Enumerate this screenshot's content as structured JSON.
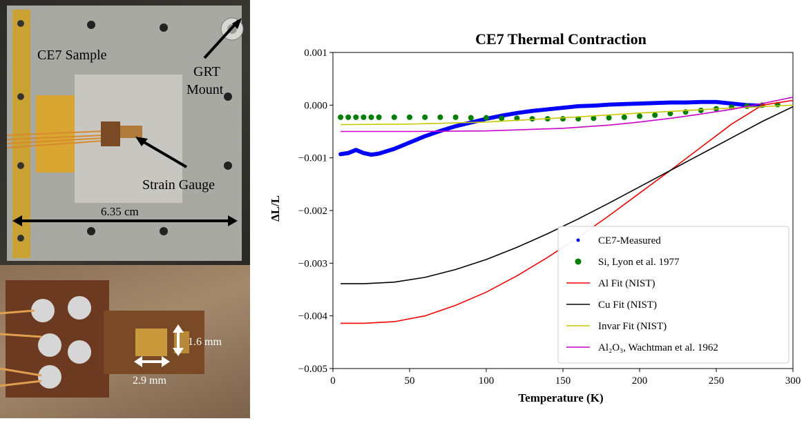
{
  "photos": {
    "top": {
      "sample_label": "CE7 Sample",
      "grt_label_line1": "GRT",
      "grt_label_line2": "Mount",
      "strain_label": "Strain Gauge",
      "width_label": "6.35 cm"
    },
    "bottom": {
      "height_label": "1.6 mm",
      "width_label": "2.9 mm"
    }
  },
  "chart_data": {
    "type": "line",
    "title": "CE7 Thermal Contraction",
    "xlabel": "Temperature (K)",
    "ylabel": "ΔL/L",
    "xlim": [
      0,
      300
    ],
    "ylim": [
      -0.005,
      0.001
    ],
    "x_ticks": [
      "0",
      "50",
      "100",
      "150",
      "200",
      "250",
      "300"
    ],
    "y_ticks": [
      "0.001",
      "0.000",
      "−0.001",
      "−0.002",
      "−0.003",
      "−0.004",
      "−0.005"
    ],
    "legend_position": "lower-right",
    "series": [
      {
        "name": "CE7-Measured",
        "style": "points",
        "color": "#0000ff",
        "x": [
          5,
          10,
          15,
          20,
          25,
          30,
          40,
          50,
          60,
          70,
          80,
          90,
          100,
          110,
          120,
          130,
          140,
          150,
          160,
          170,
          180,
          190,
          200,
          210,
          220,
          230,
          240,
          250,
          260,
          270,
          280
        ],
        "y": [
          -0.00093,
          -0.00091,
          -0.00085,
          -0.00091,
          -0.00094,
          -0.00092,
          -0.00083,
          -0.00071,
          -0.00059,
          -0.00049,
          -0.0004,
          -0.00033,
          -0.00026,
          -0.0002,
          -0.00015,
          -0.00011,
          -8e-05,
          -5e-05,
          -2e-05,
          -1e-05,
          1e-05,
          2e-05,
          3e-05,
          4e-05,
          5e-05,
          5e-05,
          6e-05,
          6e-05,
          3e-05,
          0.0,
          -1e-05
        ]
      },
      {
        "name": "Si, Lyon et al. 1977",
        "style": "markers",
        "color": "#008000",
        "x": [
          5,
          10,
          15,
          20,
          25,
          30,
          40,
          50,
          60,
          70,
          80,
          90,
          100,
          110,
          120,
          130,
          140,
          150,
          160,
          170,
          180,
          190,
          200,
          210,
          220,
          230,
          240,
          250,
          260,
          270,
          280,
          290
        ],
        "y": [
          -0.00023,
          -0.00023,
          -0.00023,
          -0.00023,
          -0.00023,
          -0.00023,
          -0.00023,
          -0.00023,
          -0.00023,
          -0.00023,
          -0.00023,
          -0.00024,
          -0.00024,
          -0.00025,
          -0.00025,
          -0.00026,
          -0.00026,
          -0.00026,
          -0.00026,
          -0.00025,
          -0.00024,
          -0.00023,
          -0.00021,
          -0.00019,
          -0.00016,
          -0.00013,
          -0.0001,
          -7e-05,
          -4e-05,
          -2e-05,
          0.0,
          1e-05
        ]
      },
      {
        "name": "Al Fit (NIST)",
        "style": "line",
        "color": "#ff0000",
        "x": [
          5,
          20,
          40,
          60,
          80,
          100,
          120,
          140,
          160,
          180,
          200,
          220,
          240,
          260,
          280,
          300
        ],
        "y": [
          -0.00414,
          -0.00414,
          -0.00411,
          -0.004,
          -0.0038,
          -0.00355,
          -0.00324,
          -0.00289,
          -0.00251,
          -0.0021,
          -0.00167,
          -0.00124,
          -0.0008,
          -0.00036,
          0.0,
          9e-05
        ]
      },
      {
        "name": "Cu Fit (NIST)",
        "style": "line",
        "color": "#000000",
        "x": [
          5,
          20,
          40,
          60,
          80,
          100,
          120,
          140,
          160,
          180,
          200,
          220,
          240,
          260,
          280,
          300
        ],
        "y": [
          -0.00339,
          -0.00339,
          -0.00336,
          -0.00327,
          -0.00312,
          -0.00293,
          -0.0027,
          -0.00244,
          -0.00216,
          -0.00186,
          -0.00155,
          -0.00124,
          -0.00093,
          -0.00062,
          -0.00031,
          -3e-05
        ]
      },
      {
        "name": "Invar Fit (NIST)",
        "style": "line",
        "color": "#c8c800",
        "x": [
          5,
          50,
          100,
          150,
          200,
          250,
          300
        ],
        "y": [
          -0.00037,
          -0.00036,
          -0.00032,
          -0.00024,
          -0.00015,
          -7e-05,
          0.0
        ]
      },
      {
        "name": "Al₂O₃, Wachtman et al. 1962",
        "style": "line",
        "color": "#cc00cc",
        "x": [
          5,
          50,
          100,
          150,
          180,
          200,
          220,
          240,
          260,
          280,
          300
        ],
        "y": [
          -0.0005,
          -0.0005,
          -0.00049,
          -0.00044,
          -0.00038,
          -0.00032,
          -0.00025,
          -0.00017,
          -8e-05,
          3e-05,
          0.00015
        ]
      }
    ]
  }
}
